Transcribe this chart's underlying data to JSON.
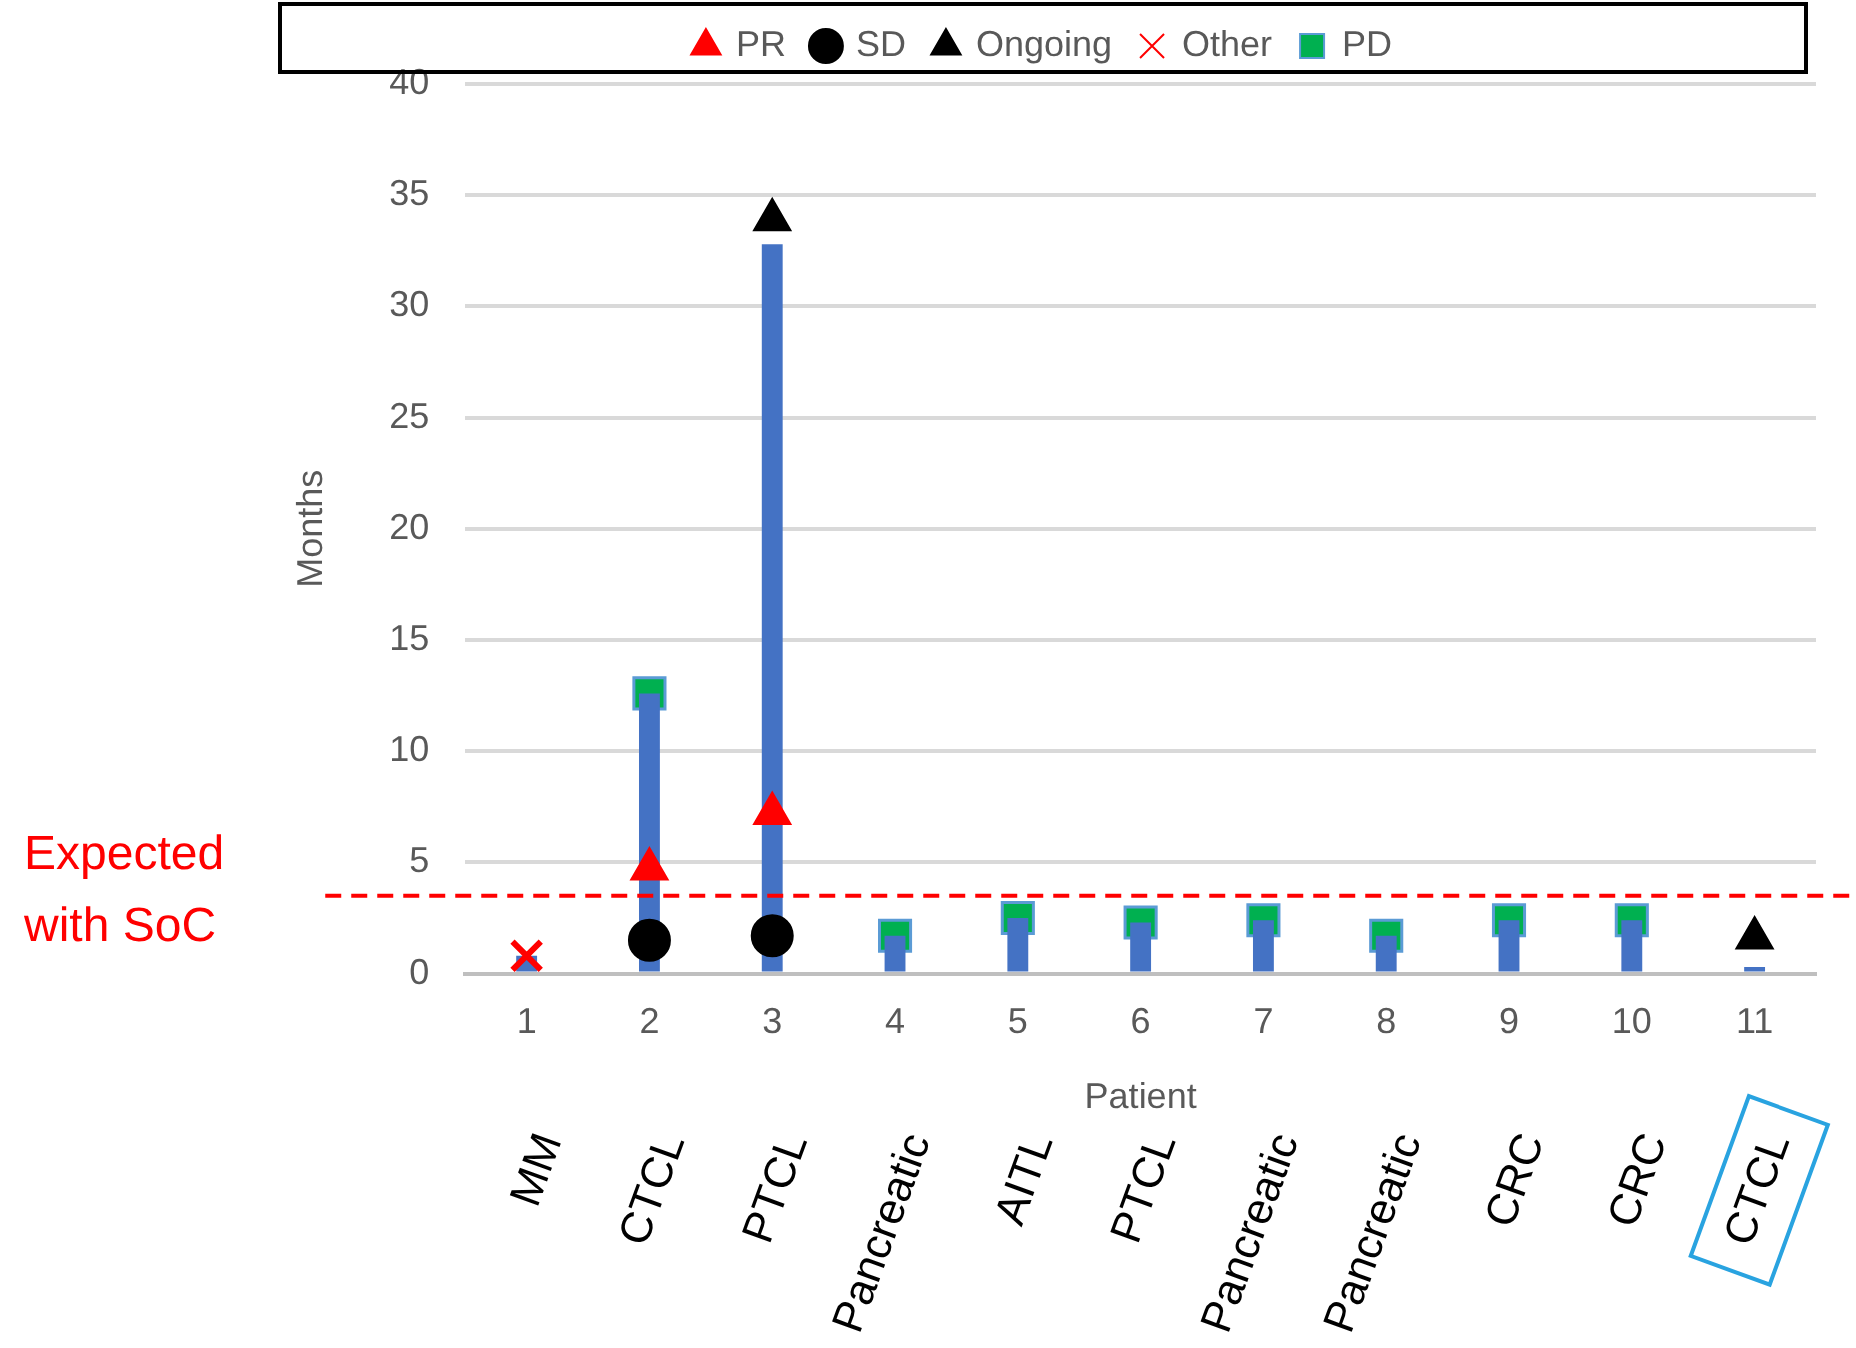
{
  "chart_data": {
    "type": "bar",
    "xlabel": "Patient",
    "ylabel": "Months",
    "categories": [
      "1",
      "2",
      "3",
      "4",
      "5",
      "6",
      "7",
      "8",
      "9",
      "10",
      "11"
    ],
    "series": [
      {
        "color": "#4472c4",
        "values": [
          0.8,
          12.6,
          32.8,
          1.7,
          2.5,
          2.3,
          2.4,
          1.7,
          2.4,
          2.4,
          0.3
        ]
      },
      {
        "name": "PR",
        "type": "scatter",
        "marker": "triangle",
        "color": "#ff0000",
        "values": [
          null,
          4.7,
          7.2,
          null,
          null,
          null,
          null,
          null,
          null,
          null,
          null
        ]
      },
      {
        "name": "SD",
        "type": "scatter",
        "marker": "circle",
        "color": "#000000",
        "values": [
          null,
          1.5,
          1.7,
          null,
          null,
          null,
          null,
          null,
          null,
          null,
          null
        ]
      },
      {
        "name": "PD",
        "type": "scatter",
        "marker": "square",
        "color": "#00b050",
        "values": [
          null,
          12.6,
          null,
          1.7,
          2.5,
          2.3,
          2.4,
          1.7,
          2.4,
          2.4,
          null
        ]
      },
      {
        "name": "Ongoing",
        "type": "scatter",
        "marker": "triangle",
        "color": "#000000",
        "values": [
          null,
          null,
          33.9,
          null,
          null,
          null,
          null,
          null,
          null,
          null,
          1.6
        ]
      },
      {
        "name": "Other",
        "type": "scatter",
        "marker": "cross",
        "color": "#ff0000",
        "values": [
          0.8,
          null,
          null,
          null,
          null,
          null,
          null,
          null,
          null,
          null,
          null
        ]
      }
    ],
    "ylim": [
      0,
      40
    ],
    "yticks": [
      0,
      5,
      10,
      15,
      20,
      25,
      30,
      35,
      40
    ],
    "grid": "y",
    "legend": "top",
    "ref_lines": [
      {
        "axis": "y",
        "value": 3.5,
        "label": "Expected with SoC",
        "color": "#ff0000",
        "line_style": "dashed"
      }
    ],
    "annotations": [
      "MM",
      "CTCL",
      "PTCL",
      "Pancreatic",
      "AITL",
      "PTCL",
      "Pancreatic",
      "Pancreatic",
      "CRC",
      "CRC",
      "CTCL"
    ]
  }
}
